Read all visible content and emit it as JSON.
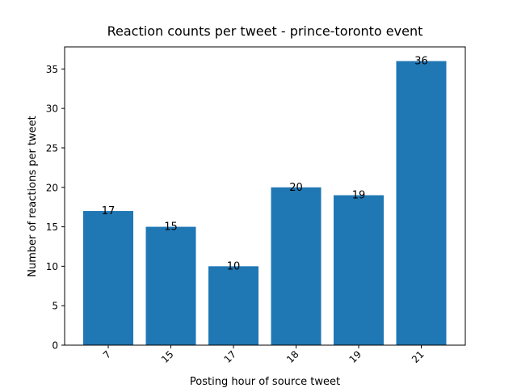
{
  "chart_data": {
    "type": "bar",
    "title": "Reaction counts per tweet - prince-toronto event",
    "xlabel": "Posting hour of source tweet",
    "ylabel": "Number of reactions per tweet",
    "categories": [
      "7",
      "15",
      "17",
      "18",
      "19",
      "21"
    ],
    "values": [
      17,
      15,
      10,
      20,
      19,
      36
    ],
    "data_labels": [
      "17",
      "15",
      "10",
      "20",
      "19",
      "36"
    ],
    "yticks": [
      0,
      5,
      10,
      15,
      20,
      25,
      30,
      35
    ],
    "ylim": [
      0,
      37.8
    ],
    "bar_color": "#1f77b4",
    "grid": false,
    "legend": false
  }
}
